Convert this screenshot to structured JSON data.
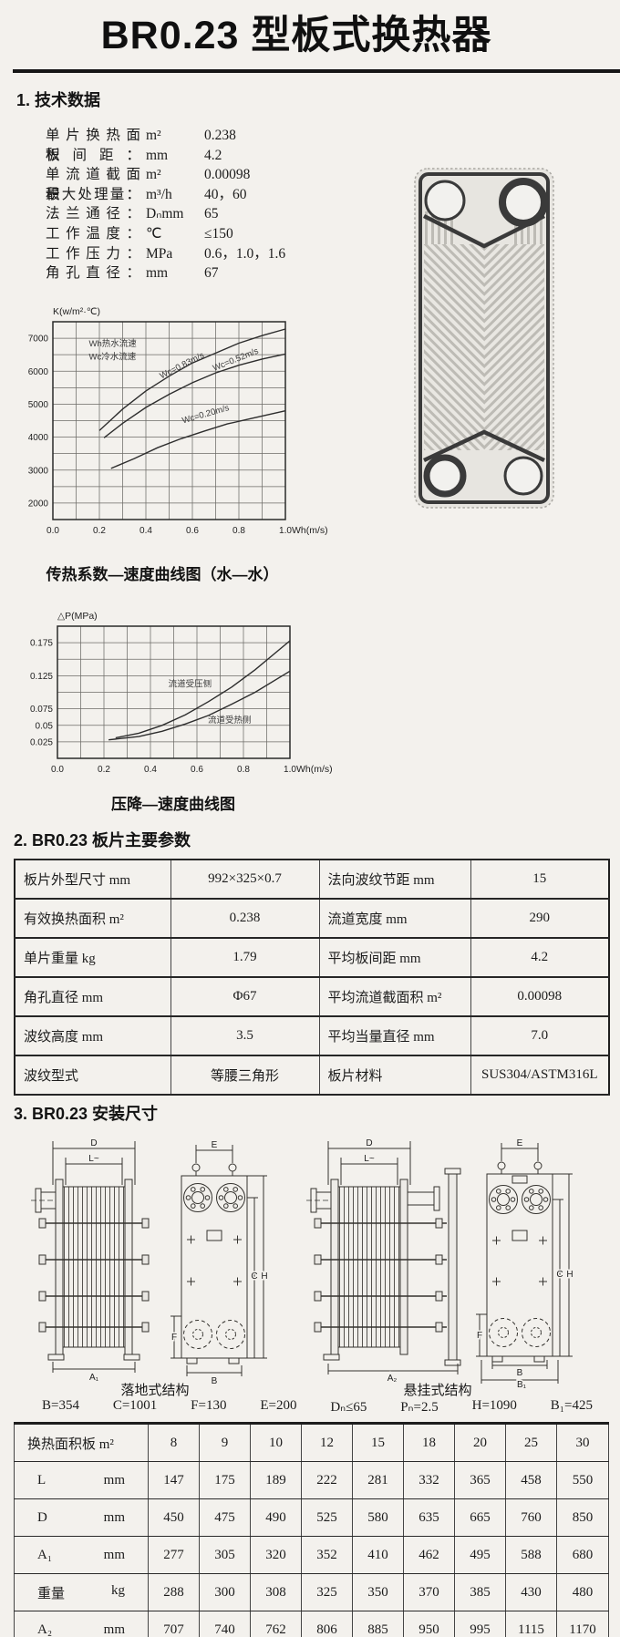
{
  "page": {
    "title": "BR0.23 型板式换热器"
  },
  "sections": {
    "tech": "1. 技术数据",
    "plate": "2. BR0.23 板片主要参数",
    "install": "3. BR0.23 安装尺寸"
  },
  "specs": [
    {
      "label": "单片换热面积：",
      "unit": "m²",
      "value": "0.238"
    },
    {
      "label": "板间距：",
      "unit": "mm",
      "value": "4.2"
    },
    {
      "label": "单流道截面积：",
      "unit": "m²",
      "value": "0.00098"
    },
    {
      "label": "最大处理量：",
      "unit": "m³/h",
      "value": "40，60"
    },
    {
      "label": "法兰通径：",
      "unit": "Dₙmm",
      "value": "65"
    },
    {
      "label": "工作温度：",
      "unit": "℃",
      "value": "≤150"
    },
    {
      "label": "工作压力：",
      "unit": "MPa",
      "value": "0.6，1.0，1.6"
    },
    {
      "label": "角孔直径：",
      "unit": "mm",
      "value": "67"
    }
  ],
  "chart_data": [
    {
      "type": "line",
      "title": "传热系数—速度曲线图（水—水）",
      "ylabel": "K(w/m²·℃)",
      "xlabel": "Wh(m/s)",
      "xlim": [
        0,
        1
      ],
      "ylim": [
        1500,
        7500
      ],
      "x_grid_step": 0.1,
      "y_grid_step": 500,
      "x_ticks": [
        "0.0",
        "0.2",
        "0.4",
        "0.6",
        "0.8",
        "1.0"
      ],
      "y_ticks": [
        "2000",
        "3000",
        "4000",
        "5000",
        "6000",
        "7000"
      ],
      "grid": true,
      "legend_position": "inside-top-left",
      "annotations": [
        {
          "text": "Wh热水流速",
          "x": 0.155,
          "y": 6750
        },
        {
          "text": "Wc冷水流速",
          "x": 0.155,
          "y": 6350
        }
      ],
      "series": [
        {
          "name": "Wc=0.83m/s",
          "label_pos": [
            0.56,
            6100
          ],
          "label_rotate": -27,
          "x": [
            0.2,
            0.3,
            0.4,
            0.5,
            0.6,
            0.7,
            0.8,
            0.9,
            1.0
          ],
          "y": [
            4200,
            4850,
            5400,
            5850,
            6250,
            6550,
            6850,
            7080,
            7280
          ]
        },
        {
          "name": "Wc=0.52m/s",
          "label_pos": [
            0.79,
            6280
          ],
          "label_rotate": -22,
          "x": [
            0.22,
            0.3,
            0.4,
            0.5,
            0.6,
            0.7,
            0.8,
            0.9,
            1.0
          ],
          "y": [
            3980,
            4420,
            4900,
            5300,
            5650,
            5950,
            6180,
            6370,
            6520
          ]
        },
        {
          "name": "Wc=0.20m/s",
          "label_pos": [
            0.66,
            4620
          ],
          "label_rotate": -16,
          "x": [
            0.25,
            0.35,
            0.45,
            0.55,
            0.65,
            0.75,
            0.85,
            1.0
          ],
          "y": [
            3050,
            3350,
            3680,
            3950,
            4180,
            4400,
            4560,
            4800
          ]
        }
      ]
    },
    {
      "type": "line",
      "title": "压降—速度曲线图",
      "ylabel": "△P(MPa)",
      "xlabel": "Wh(m/s)",
      "xlim": [
        0,
        1
      ],
      "ylim": [
        0,
        0.2
      ],
      "x_grid_step": 0.1,
      "y_grid_step": 0.025,
      "x_ticks": [
        "0.0",
        "0.2",
        "0.4",
        "0.6",
        "0.8",
        "1.0"
      ],
      "y_ticks": [
        "0.025",
        "0.05",
        "0.075",
        "0.125",
        "0.175"
      ],
      "grid": true,
      "annotations": [],
      "series": [
        {
          "name": "流道受压侧",
          "label_pos": [
            0.57,
            0.108
          ],
          "label_rotate": 0,
          "x": [
            0.25,
            0.35,
            0.45,
            0.55,
            0.65,
            0.75,
            0.85,
            1.0
          ],
          "y": [
            0.031,
            0.038,
            0.05,
            0.066,
            0.086,
            0.108,
            0.134,
            0.178
          ]
        },
        {
          "name": "流道受热侧",
          "label_pos": [
            0.74,
            0.054
          ],
          "label_rotate": 0,
          "x": [
            0.22,
            0.35,
            0.45,
            0.55,
            0.65,
            0.75,
            0.85,
            1.0
          ],
          "y": [
            0.028,
            0.033,
            0.041,
            0.052,
            0.065,
            0.082,
            0.1,
            0.132
          ]
        }
      ]
    }
  ],
  "plate_params": {
    "rows": [
      [
        "板片外型尺寸 mm",
        "992×325×0.7",
        "法向波纹节距 mm",
        "15"
      ],
      [
        "有效换热面积 m²",
        "0.238",
        "流道宽度 mm",
        "290"
      ],
      [
        "单片重量 kg",
        "1.79",
        "平均板间距 mm",
        "4.2"
      ],
      [
        "角孔直径 mm",
        "Φ67",
        "平均流道截面积 m²",
        "0.00098"
      ],
      [
        "波纹高度 mm",
        "3.5",
        "平均当量直径 mm",
        "7.0"
      ],
      [
        "波纹型式",
        "等腰三角形",
        "板片材料",
        "SUS304/ASTM316L"
      ]
    ]
  },
  "install": {
    "captions": [
      "落地式结构",
      "悬挂式结构"
    ],
    "dims": [
      "B=354",
      "C=1001",
      "F=130",
      "E=200",
      "Dₙ≤65",
      "Pₙ=2.5",
      "H=1090",
      "B₁=425"
    ],
    "labels": {
      "d": "D",
      "l": "L~",
      "e": "E",
      "c": "C",
      "h": "H",
      "f": "F",
      "a1": "A₁",
      "a2": "A₂",
      "b": "B",
      "b1": "B₁"
    }
  },
  "size_table": {
    "corner": "换热面积板 m²",
    "areas": [
      "8",
      "9",
      "10",
      "12",
      "15",
      "18",
      "20",
      "25",
      "30"
    ],
    "rows": [
      {
        "key": "L",
        "unit": "mm",
        "values": [
          "147",
          "175",
          "189",
          "222",
          "281",
          "332",
          "365",
          "458",
          "550"
        ]
      },
      {
        "key": "D",
        "unit": "mm",
        "values": [
          "450",
          "475",
          "490",
          "525",
          "580",
          "635",
          "665",
          "760",
          "850"
        ]
      },
      {
        "key": "A₁",
        "unit": "mm",
        "values": [
          "277",
          "305",
          "320",
          "352",
          "410",
          "462",
          "495",
          "588",
          "680"
        ]
      },
      {
        "key": "重量",
        "unit": "kg",
        "values": [
          "288",
          "300",
          "308",
          "325",
          "350",
          "370",
          "385",
          "430",
          "480"
        ]
      },
      {
        "key": "A₂",
        "unit": "mm",
        "values": [
          "707",
          "740",
          "762",
          "806",
          "885",
          "950",
          "995",
          "1115",
          "1170"
        ]
      }
    ]
  }
}
